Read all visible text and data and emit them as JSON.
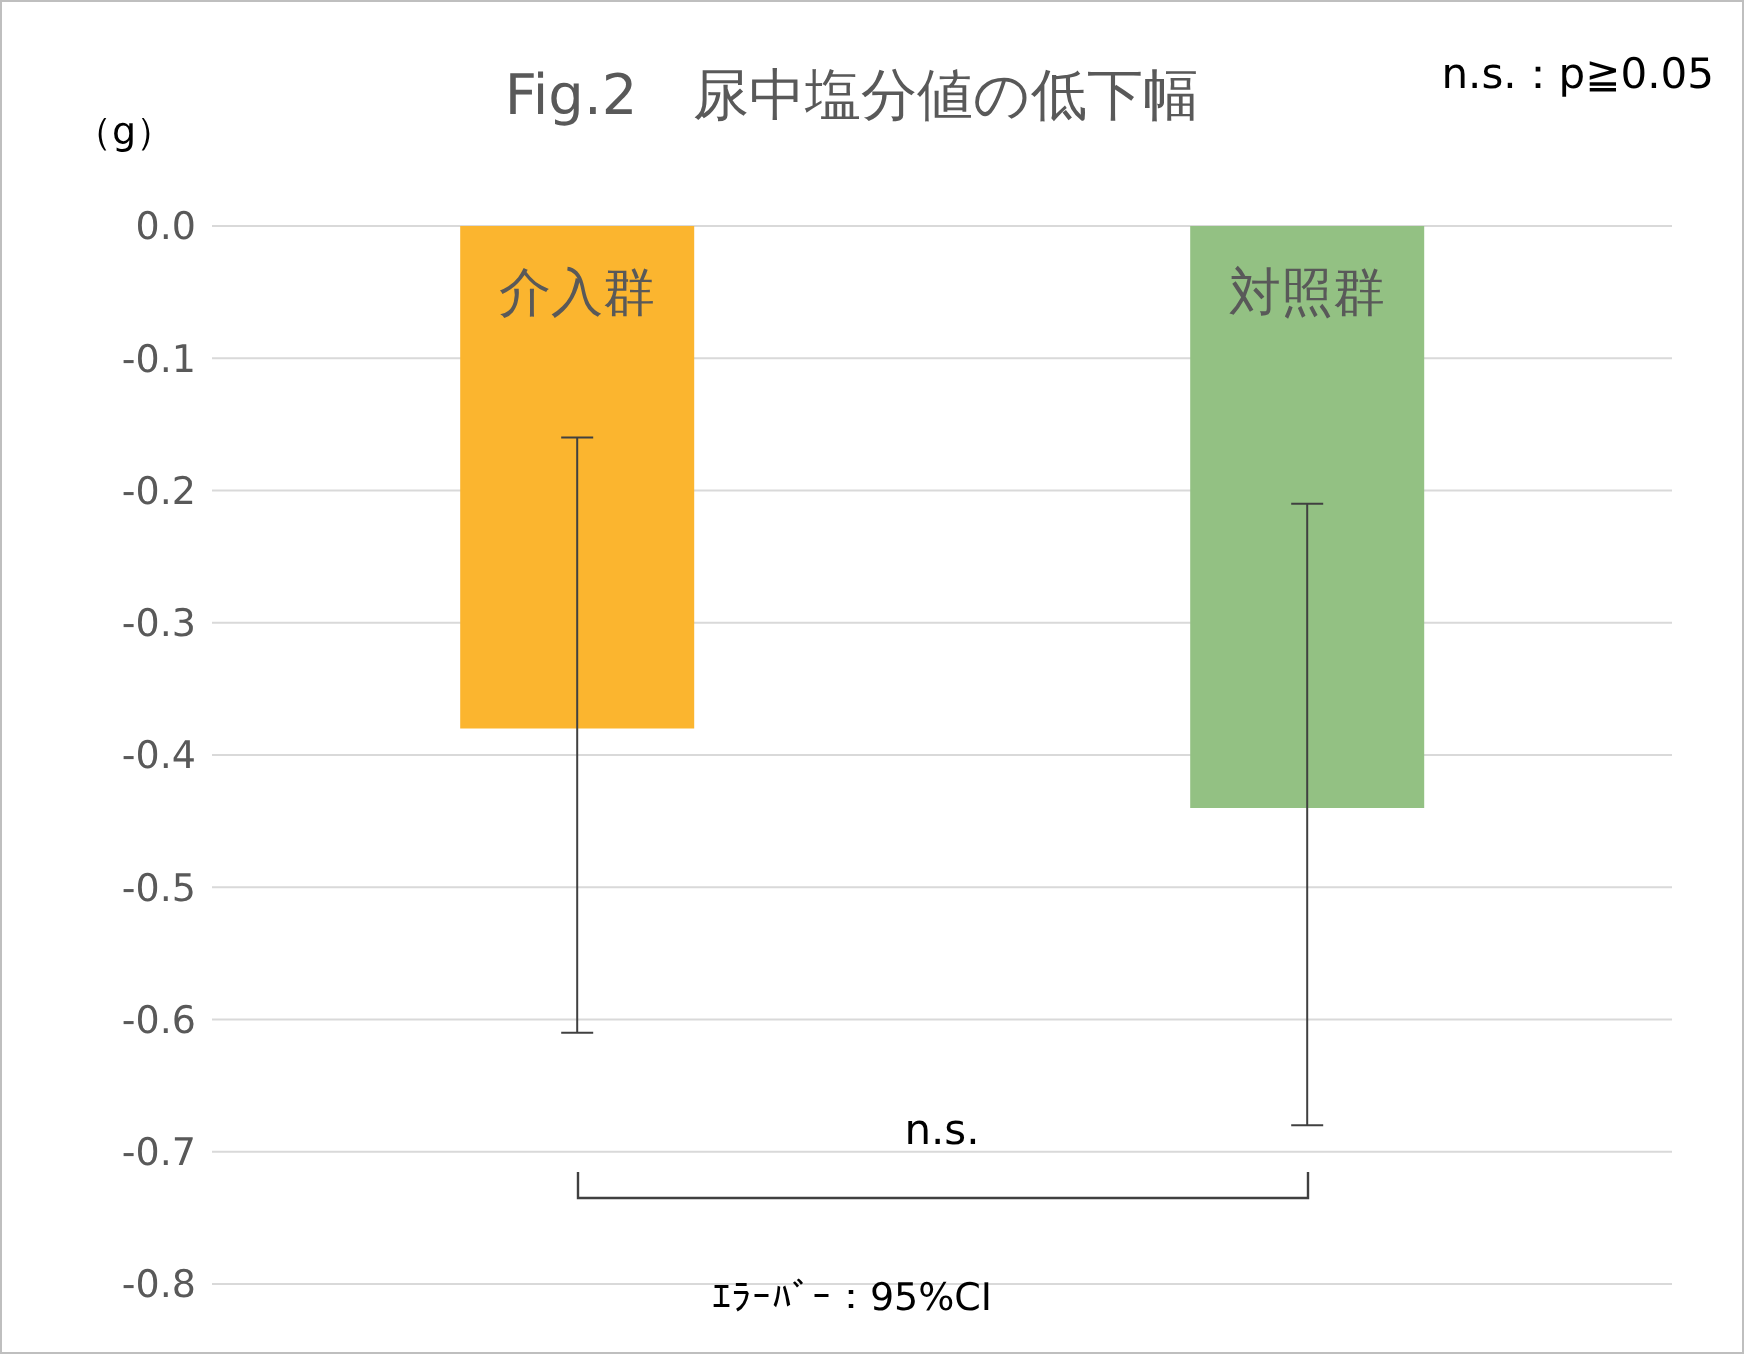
{
  "chart_data": {
    "type": "bar",
    "title": "Fig.2　尿中塩分値の低下幅",
    "ylabel": "（g）",
    "annotations": [
      "n.s.：p≧0.05",
      "n.s.",
      "ｴﾗｰﾊﾞｰ：95%CI"
    ],
    "categories": [
      "介入群",
      "対照群"
    ],
    "values": [
      -0.38,
      -0.44
    ],
    "colors": [
      "#fbb52f",
      "#93c183"
    ],
    "errors": [
      [
        -0.61,
        -0.16
      ],
      [
        -0.68,
        -0.21
      ]
    ],
    "ylim": [
      -0.8,
      0
    ],
    "yticks": [
      {
        "value": 0,
        "label": "0.0"
      },
      -0.1,
      -0.2,
      -0.3,
      -0.4,
      -0.5,
      -0.6,
      -0.7,
      -0.8
    ],
    "grid": "y",
    "legend": false
  }
}
